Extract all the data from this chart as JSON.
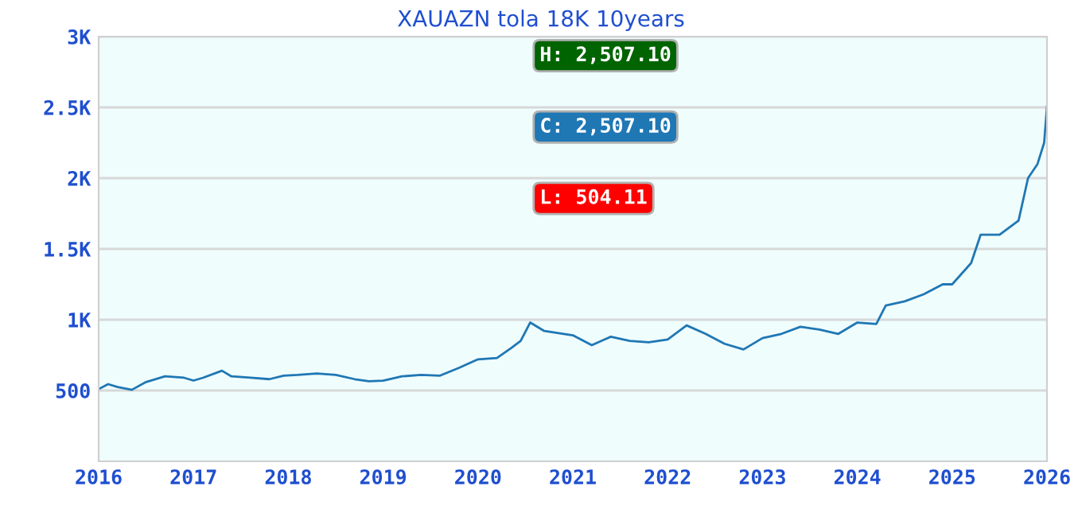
{
  "chart_data": {
    "type": "line",
    "title": "XAUAZN tola 18K 10years",
    "x": [
      2016.0,
      2016.1,
      2016.2,
      2016.35,
      2016.5,
      2016.7,
      2016.9,
      2017.0,
      2017.1,
      2017.3,
      2017.4,
      2017.6,
      2017.8,
      2017.95,
      2018.1,
      2018.3,
      2018.5,
      2018.7,
      2018.85,
      2019.0,
      2019.2,
      2019.4,
      2019.6,
      2019.8,
      2020.0,
      2020.2,
      2020.35,
      2020.45,
      2020.55,
      2020.7,
      2021.0,
      2021.2,
      2021.4,
      2021.6,
      2021.8,
      2022.0,
      2022.2,
      2022.4,
      2022.6,
      2022.8,
      2023.0,
      2023.2,
      2023.4,
      2023.6,
      2023.8,
      2024.0,
      2024.2,
      2024.3,
      2024.5,
      2024.7,
      2024.9,
      2025.0,
      2025.2,
      2025.3,
      2025.5,
      2025.7,
      2025.8,
      2025.9,
      2025.97,
      2026.0
    ],
    "series": [
      {
        "color": "#1f77b4",
        "values": [
          510,
          545,
          525,
          505,
          560,
          600,
          590,
          570,
          590,
          640,
          600,
          590,
          580,
          605,
          610,
          620,
          610,
          580,
          565,
          570,
          600,
          610,
          605,
          660,
          720,
          730,
          800,
          850,
          980,
          920,
          890,
          820,
          880,
          850,
          840,
          860,
          960,
          900,
          830,
          790,
          870,
          900,
          950,
          930,
          900,
          980,
          970,
          1100,
          1130,
          1180,
          1250,
          1250,
          1400,
          1600,
          1600,
          1700,
          2000,
          2100,
          2250,
          2507
        ]
      }
    ],
    "xlim": [
      2016,
      2026
    ],
    "xticks": [
      2016,
      2017,
      2018,
      2019,
      2020,
      2021,
      2022,
      2023,
      2024,
      2025,
      2026
    ],
    "ylim": [
      0,
      3000
    ],
    "yticks": [
      {
        "value": 500,
        "label": "500"
      },
      {
        "value": 1000,
        "label": "1K"
      },
      {
        "value": 1500,
        "label": "1.5K"
      },
      {
        "value": 2000,
        "label": "2K"
      },
      {
        "value": 2500,
        "label": "2.5K"
      },
      {
        "value": 3000,
        "label": "3K"
      }
    ],
    "grid": "y",
    "legend": false,
    "annotations": [
      "H: 2,507.10",
      "C: 2,507.10",
      "L: 504.11"
    ]
  }
}
